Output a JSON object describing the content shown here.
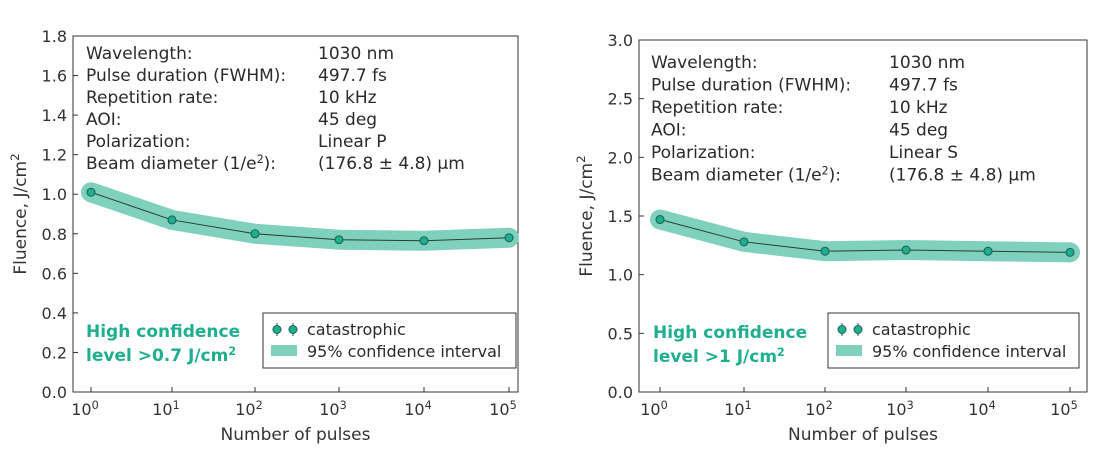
{
  "chart_data": [
    {
      "type": "line",
      "xscale": "log",
      "x": [
        1,
        10,
        100,
        1000,
        10000,
        100000
      ],
      "x_tick_labels": [
        {
          "base": "10",
          "exp": "0"
        },
        {
          "base": "10",
          "exp": "1"
        },
        {
          "base": "10",
          "exp": "2"
        },
        {
          "base": "10",
          "exp": "3"
        },
        {
          "base": "10",
          "exp": "4"
        },
        {
          "base": "10",
          "exp": "5"
        }
      ],
      "y_ticks": [
        "0.0",
        "0.2",
        "0.4",
        "0.6",
        "0.8",
        "1.0",
        "1.2",
        "1.4",
        "1.6",
        "1.8"
      ],
      "ylim": [
        0,
        1.8
      ],
      "series": [
        {
          "name": "catastrophic",
          "values": [
            1.01,
            0.87,
            0.8,
            0.77,
            0.765,
            0.78
          ]
        }
      ],
      "band": {
        "name": "95% confidence interval",
        "lower": [
          0.97,
          0.83,
          0.765,
          0.74,
          0.74,
          0.755
        ],
        "upper": [
          1.05,
          0.91,
          0.835,
          0.8,
          0.79,
          0.805
        ]
      },
      "xlabel": "Number of pulses",
      "ylabel": "Fluence, J/cm",
      "ylabel_sup": "2",
      "params": [
        {
          "label": "Wavelength:",
          "value": "1030 nm"
        },
        {
          "label": "Pulse duration (FWHM):",
          "value": "497.7 fs"
        },
        {
          "label": "Repetition rate:",
          "value": "10 kHz"
        },
        {
          "label": "AOI:",
          "value": "45 deg"
        },
        {
          "label": "Polarization:",
          "value": "Linear P"
        },
        {
          "label": "Beam diameter (1/e",
          "label_sup": "2",
          "label_end": "):",
          "value": "(176.8 ± 4.8) μm"
        }
      ],
      "confidence_line1": "High confidence",
      "confidence_line2": "level >0.7 J/cm",
      "confidence_sup": "2",
      "legend": {
        "marker_label": "catastrophic",
        "band_label": "95% confidence interval"
      }
    },
    {
      "type": "line",
      "xscale": "log",
      "x": [
        1,
        10,
        100,
        1000,
        10000,
        100000
      ],
      "x_tick_labels": [
        {
          "base": "10",
          "exp": "0"
        },
        {
          "base": "10",
          "exp": "1"
        },
        {
          "base": "10",
          "exp": "2"
        },
        {
          "base": "10",
          "exp": "3"
        },
        {
          "base": "10",
          "exp": "4"
        },
        {
          "base": "10",
          "exp": "5"
        }
      ],
      "y_ticks": [
        "0.0",
        "0.5",
        "1.0",
        "1.5",
        "2.0",
        "2.5",
        "3.0"
      ],
      "ylim": [
        0,
        3.0
      ],
      "series": [
        {
          "name": "catastrophic",
          "values": [
            1.47,
            1.28,
            1.2,
            1.21,
            1.2,
            1.19
          ]
        }
      ],
      "band": {
        "name": "95% confidence interval",
        "lower": [
          1.4,
          1.22,
          1.15,
          1.16,
          1.15,
          1.14
        ],
        "upper": [
          1.54,
          1.34,
          1.25,
          1.26,
          1.25,
          1.24
        ]
      },
      "xlabel": "Number of pulses",
      "ylabel": "Fluence, J/cm",
      "ylabel_sup": "2",
      "params": [
        {
          "label": "Wavelength:",
          "value": "1030 nm"
        },
        {
          "label": "Pulse duration (FWHM):",
          "value": "497.7 fs"
        },
        {
          "label": "Repetition rate:",
          "value": "10 kHz"
        },
        {
          "label": "AOI:",
          "value": "45 deg"
        },
        {
          "label": "Polarization:",
          "value": "Linear S"
        },
        {
          "label": "Beam diameter (1/e",
          "label_sup": "2",
          "label_end": "):",
          "value": "(176.8 ± 4.8) μm"
        }
      ],
      "confidence_line1": "High confidence",
      "confidence_line2": "level >1 J/cm",
      "confidence_sup": "2",
      "legend": {
        "marker_label": "catastrophic",
        "band_label": "95% confidence interval"
      }
    }
  ],
  "colors": {
    "band": "#7fd1bd",
    "marker_fill": "#1fae8e",
    "marker_stroke": "#1a5e50",
    "line": "#2c3b38",
    "accent_text": "#1fae8e",
    "axis": "#333333"
  }
}
